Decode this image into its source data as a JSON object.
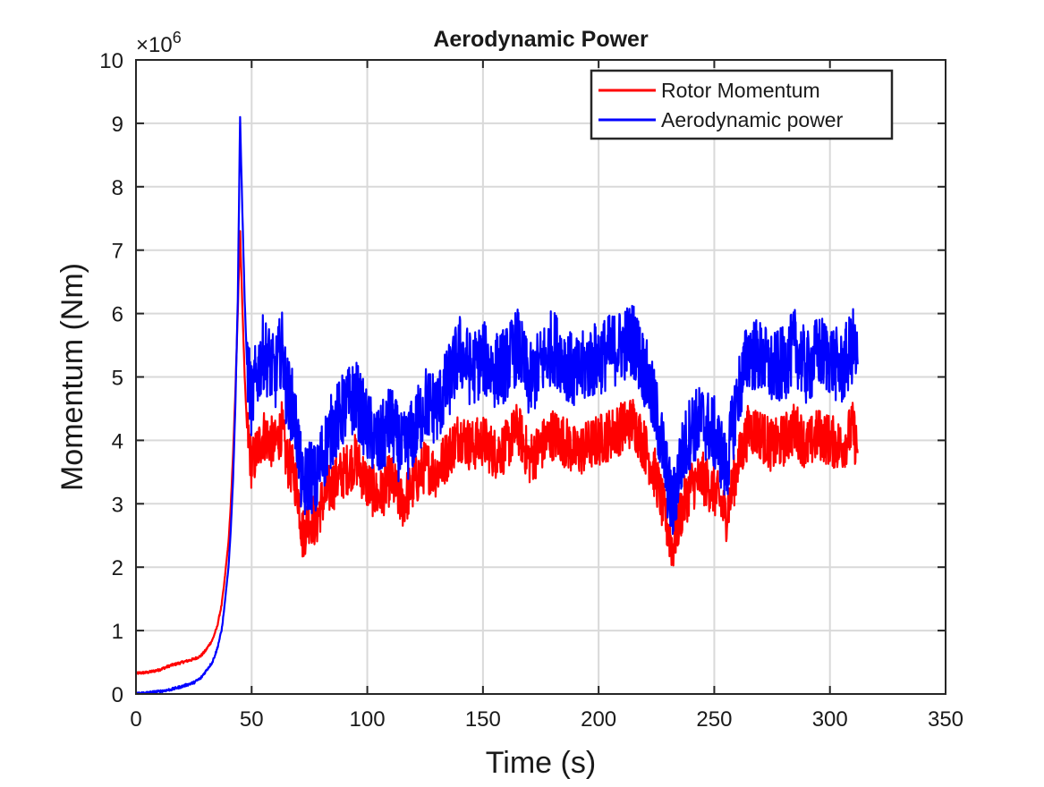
{
  "chart_data": {
    "type": "line",
    "title": "Aerodynamic Power",
    "xlabel": "Time (s)",
    "ylabel": "Momentum (Nm)",
    "y_exponent_label": "×10",
    "y_exponent_power": "6",
    "xlim": [
      0,
      350
    ],
    "ylim": [
      0,
      10
    ],
    "x_ticks": [
      0,
      50,
      100,
      150,
      200,
      250,
      300,
      350
    ],
    "y_ticks": [
      0,
      1,
      2,
      3,
      4,
      5,
      6,
      7,
      8,
      9,
      10
    ],
    "grid": true,
    "legend_position": "top-right",
    "series": [
      {
        "name": "Rotor Momentum",
        "color": "#ff0000",
        "x": [
          0,
          1,
          5,
          10,
          15,
          20,
          25,
          28,
          30,
          33,
          35,
          37,
          38,
          40,
          41,
          42,
          43,
          44,
          45,
          46,
          47,
          48,
          50,
          52,
          55,
          58,
          60,
          63,
          65,
          68,
          70,
          72,
          75,
          78,
          80,
          85,
          90,
          95,
          100,
          105,
          110,
          115,
          120,
          125,
          130,
          135,
          140,
          145,
          150,
          155,
          160,
          165,
          170,
          175,
          180,
          185,
          190,
          195,
          200,
          205,
          210,
          215,
          220,
          225,
          228,
          230,
          232,
          235,
          240,
          245,
          250,
          253,
          255,
          260,
          265,
          270,
          275,
          280,
          285,
          290,
          295,
          300,
          305,
          310,
          312
        ],
        "values": [
          0.32,
          0.33,
          0.34,
          0.38,
          0.45,
          0.5,
          0.55,
          0.6,
          0.68,
          0.85,
          1.05,
          1.4,
          1.7,
          2.4,
          3.0,
          3.8,
          4.8,
          6.0,
          7.3,
          6.1,
          5.0,
          4.2,
          3.6,
          3.8,
          4.1,
          4.0,
          3.9,
          4.2,
          3.7,
          3.5,
          3.2,
          2.5,
          2.8,
          2.7,
          3.0,
          3.3,
          3.5,
          3.7,
          3.3,
          3.1,
          3.4,
          3.0,
          3.3,
          3.6,
          3.5,
          3.8,
          4.1,
          3.9,
          4.0,
          3.8,
          3.9,
          4.2,
          3.7,
          3.9,
          4.1,
          4.0,
          3.8,
          3.9,
          4.0,
          4.1,
          4.2,
          4.3,
          3.9,
          3.4,
          2.9,
          2.6,
          2.3,
          2.8,
          3.3,
          3.4,
          3.2,
          3.0,
          2.8,
          3.6,
          4.2,
          4.1,
          3.9,
          4.0,
          4.2,
          3.9,
          4.1,
          4.0,
          3.9,
          4.2,
          3.8
        ],
        "noise_amplitude": 0.42
      },
      {
        "name": "Aerodynamic power",
        "color": "#0000ff",
        "x": [
          0,
          1,
          5,
          10,
          15,
          20,
          25,
          28,
          30,
          33,
          35,
          37,
          38,
          40,
          41,
          42,
          43,
          44,
          45,
          46,
          47,
          48,
          50,
          52,
          55,
          58,
          60,
          63,
          65,
          68,
          70,
          72,
          75,
          78,
          80,
          85,
          90,
          95,
          100,
          105,
          110,
          115,
          120,
          125,
          130,
          135,
          140,
          145,
          150,
          155,
          160,
          165,
          170,
          175,
          180,
          185,
          190,
          195,
          200,
          205,
          210,
          215,
          220,
          225,
          228,
          230,
          232,
          235,
          240,
          245,
          250,
          253,
          255,
          260,
          265,
          270,
          275,
          280,
          285,
          290,
          295,
          300,
          305,
          310,
          312
        ],
        "values": [
          0.0,
          0.01,
          0.02,
          0.04,
          0.07,
          0.12,
          0.18,
          0.25,
          0.35,
          0.5,
          0.7,
          1.0,
          1.3,
          2.0,
          2.6,
          3.4,
          4.6,
          6.2,
          9.1,
          7.6,
          6.2,
          5.2,
          4.6,
          5.0,
          5.4,
          5.2,
          5.0,
          5.5,
          4.8,
          4.5,
          4.0,
          3.2,
          3.5,
          3.3,
          3.7,
          4.2,
          4.5,
          4.7,
          4.2,
          3.9,
          4.3,
          3.8,
          4.1,
          4.6,
          4.5,
          4.9,
          5.4,
          5.1,
          5.3,
          5.1,
          5.2,
          5.5,
          4.9,
          5.2,
          5.5,
          5.3,
          5.0,
          5.2,
          5.3,
          5.4,
          5.5,
          5.6,
          5.1,
          4.4,
          3.8,
          3.3,
          2.9,
          3.6,
          4.2,
          4.3,
          4.1,
          3.8,
          3.5,
          4.7,
          5.4,
          5.3,
          5.1,
          5.2,
          5.5,
          5.1,
          5.4,
          5.3,
          5.1,
          5.5,
          5.2
        ],
        "noise_amplitude": 0.6
      }
    ]
  }
}
